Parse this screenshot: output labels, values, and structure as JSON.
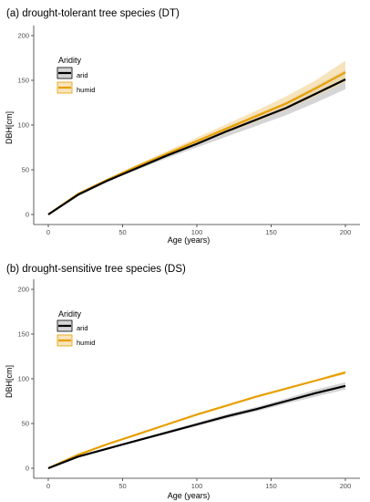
{
  "colors": {
    "arid": "#000000",
    "humid": "#e69f00",
    "arid_band": "#b3b3b3",
    "humid_band": "#f5d9a0",
    "axis": "#333333"
  },
  "chart_data": [
    {
      "type": "line",
      "title": "(a) drought-tolerant tree species (DT)",
      "xlabel": "Age (years)",
      "ylabel": "DBH[cm]",
      "xlim": [
        0,
        200
      ],
      "ylim": [
        0,
        200
      ],
      "xticks": [
        0,
        50,
        100,
        150,
        200
      ],
      "yticks": [
        0,
        50,
        100,
        150,
        200
      ],
      "grid": false,
      "legend": {
        "title": "Aridity",
        "placement": "top-left",
        "entries": [
          "arid",
          "humid"
        ]
      },
      "x": [
        0,
        20,
        40,
        60,
        80,
        100,
        120,
        140,
        160,
        180,
        200
      ],
      "series": [
        {
          "name": "arid",
          "values": [
            0,
            22,
            38,
            52,
            66,
            79,
            93,
            106,
            119,
            135,
            151
          ],
          "lower": [
            0,
            21,
            37,
            50,
            63,
            75,
            87,
            99,
            111,
            125,
            140
          ],
          "upper": [
            0,
            23,
            39,
            54,
            69,
            83,
            98,
            112,
            126,
            144,
            162
          ]
        },
        {
          "name": "humid",
          "values": [
            0,
            23,
            39,
            54,
            68,
            82,
            96,
            110,
            124,
            141,
            159
          ],
          "lower": [
            0,
            22,
            38,
            52,
            65,
            78,
            91,
            104,
            117,
            132,
            148
          ],
          "upper": [
            0,
            24,
            40,
            56,
            71,
            86,
            101,
            116,
            132,
            150,
            172
          ]
        }
      ]
    },
    {
      "type": "line",
      "title": "(b) drought-sensitive tree species (DS)",
      "xlabel": "Age (years)",
      "ylabel": "DBH[cm]",
      "xlim": [
        0,
        200
      ],
      "ylim": [
        0,
        200
      ],
      "xticks": [
        0,
        50,
        100,
        150,
        200
      ],
      "yticks": [
        0,
        50,
        100,
        150,
        200
      ],
      "grid": false,
      "legend": {
        "title": "Aridity",
        "placement": "top-left",
        "entries": [
          "arid",
          "humid"
        ]
      },
      "x": [
        0,
        20,
        40,
        60,
        80,
        100,
        120,
        140,
        160,
        180,
        200
      ],
      "series": [
        {
          "name": "arid",
          "values": [
            0,
            13,
            22,
            31,
            40,
            49,
            58,
            66,
            75,
            84,
            92
          ],
          "lower": [
            0,
            12.5,
            21,
            30,
            38.5,
            47,
            55.5,
            63.5,
            72,
            80,
            88
          ],
          "upper": [
            0,
            13.5,
            23,
            32,
            41.5,
            51,
            60.5,
            68.5,
            78,
            88,
            96
          ]
        },
        {
          "name": "humid",
          "values": [
            0,
            15,
            27,
            38,
            49,
            60,
            70,
            80,
            89,
            98,
            107
          ],
          "lower": [
            0,
            14.5,
            26.5,
            37.5,
            48.5,
            59,
            69,
            79,
            88,
            97,
            105
          ],
          "upper": [
            0,
            15.5,
            27.5,
            38.5,
            49.5,
            61,
            71,
            81,
            90,
            99,
            109
          ]
        }
      ]
    }
  ]
}
